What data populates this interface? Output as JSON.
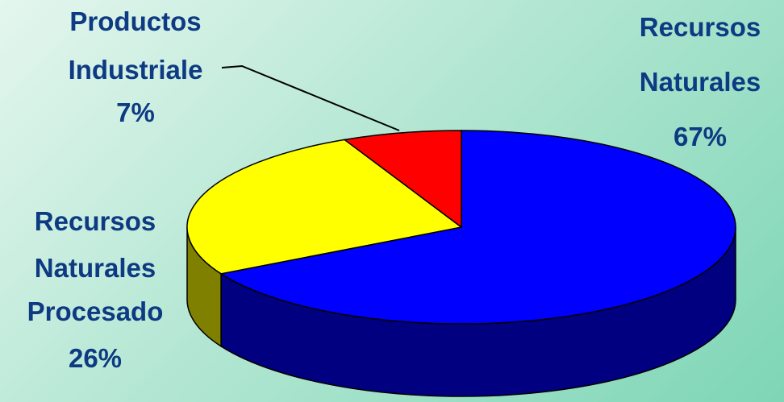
{
  "chart_data": {
    "type": "pie",
    "style": "3d",
    "title": "",
    "slices": [
      {
        "lines": [
          "Recursos",
          "Naturales",
          "67%"
        ],
        "value": 67,
        "color": "#0000ff",
        "side_color": "#000080"
      },
      {
        "lines": [
          "Recursos",
          "Naturales",
          "Procesado",
          "26%"
        ],
        "value": 26,
        "color": "#ffff00",
        "side_color": "#808000"
      },
      {
        "lines": [
          "Productos",
          "Industriale",
          "7%"
        ],
        "value": 7,
        "color": "#ff0000",
        "side_color": "#800000"
      }
    ]
  }
}
